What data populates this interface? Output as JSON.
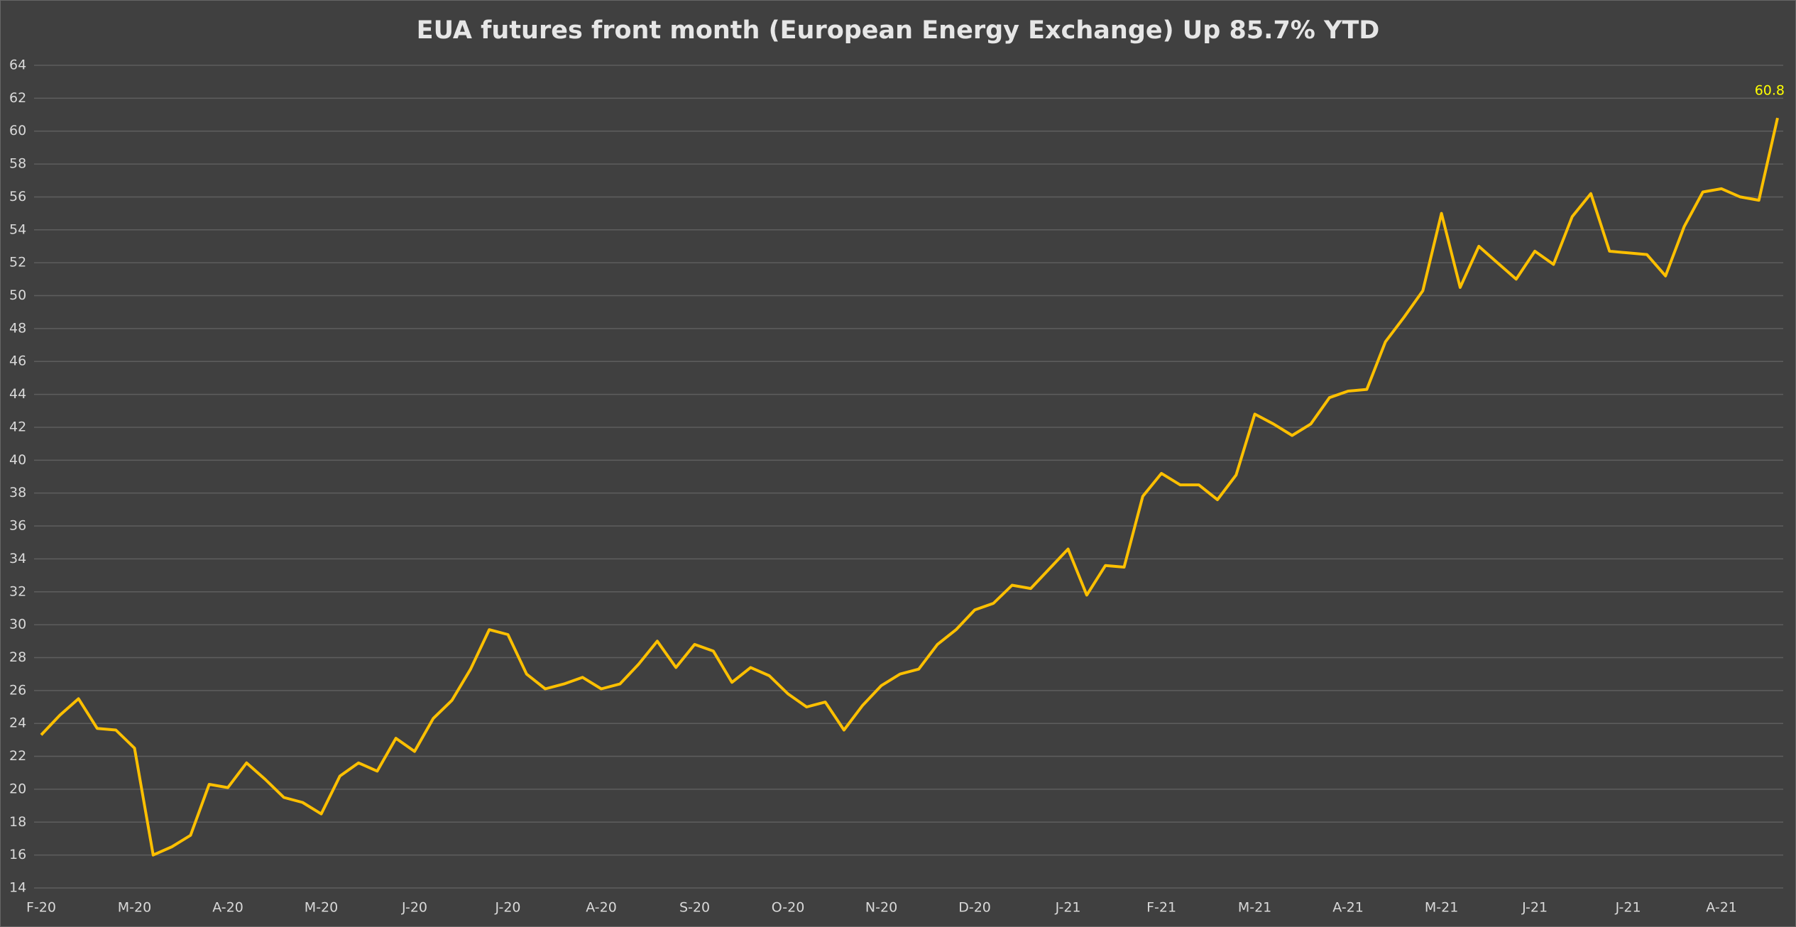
{
  "chart_data": {
    "type": "line",
    "title": "EUA futures front month (European Energy Exchange) Up 85.7% YTD",
    "categories": [
      "F-20",
      null,
      null,
      null,
      null,
      "M-20",
      null,
      null,
      null,
      null,
      "A-20",
      null,
      null,
      null,
      null,
      "M-20",
      null,
      null,
      null,
      null,
      "J-20",
      null,
      null,
      null,
      null,
      "J-20",
      null,
      null,
      null,
      null,
      "A-20",
      null,
      null,
      null,
      null,
      "S-20",
      null,
      null,
      null,
      null,
      "O-20",
      null,
      null,
      null,
      null,
      "N-20",
      null,
      null,
      null,
      null,
      "D-20",
      null,
      null,
      null,
      null,
      "J-21",
      null,
      null,
      null,
      null,
      "F-21",
      null,
      null,
      null,
      null,
      "M-21",
      null,
      null,
      null,
      null,
      "A-21",
      null,
      null,
      null,
      null,
      "M-21",
      null,
      null,
      null,
      null,
      "J-21",
      null,
      null,
      null,
      null,
      "J-21",
      null,
      null,
      null,
      null,
      "A-21",
      null,
      null,
      null
    ],
    "values": [
      23.3,
      24.5,
      25.5,
      23.7,
      23.6,
      22.5,
      16.0,
      16.5,
      17.2,
      20.3,
      20.1,
      21.6,
      20.6,
      19.5,
      19.2,
      18.5,
      20.8,
      21.6,
      21.1,
      23.1,
      22.3,
      24.3,
      25.4,
      27.3,
      29.7,
      29.4,
      27.0,
      26.1,
      26.4,
      26.8,
      26.1,
      26.4,
      27.6,
      29.0,
      27.4,
      28.8,
      28.4,
      26.5,
      27.4,
      26.9,
      25.8,
      25.0,
      25.3,
      23.6,
      25.1,
      26.3,
      27.0,
      27.3,
      28.8,
      29.7,
      30.9,
      31.3,
      32.4,
      32.2,
      33.4,
      34.6,
      31.8,
      33.6,
      33.5,
      37.8,
      39.2,
      38.5,
      38.5,
      37.6,
      39.1,
      42.8,
      42.2,
      41.5,
      42.2,
      43.8,
      44.2,
      44.3,
      47.2,
      48.7,
      50.3,
      55.0,
      50.5,
      53.0,
      52.0,
      51.0,
      52.7,
      51.9,
      54.8,
      56.2,
      52.7,
      52.6,
      52.5,
      51.2,
      54.2,
      56.3,
      56.5,
      56.0,
      55.8,
      60.8
    ],
    "color": "#ffc000",
    "ylim": [
      14,
      64
    ],
    "yticks": [
      14,
      16,
      18,
      20,
      22,
      24,
      26,
      28,
      30,
      32,
      34,
      36,
      38,
      40,
      42,
      44,
      46,
      48,
      50,
      52,
      54,
      56,
      58,
      60,
      62,
      64
    ],
    "grid": true
  }
}
